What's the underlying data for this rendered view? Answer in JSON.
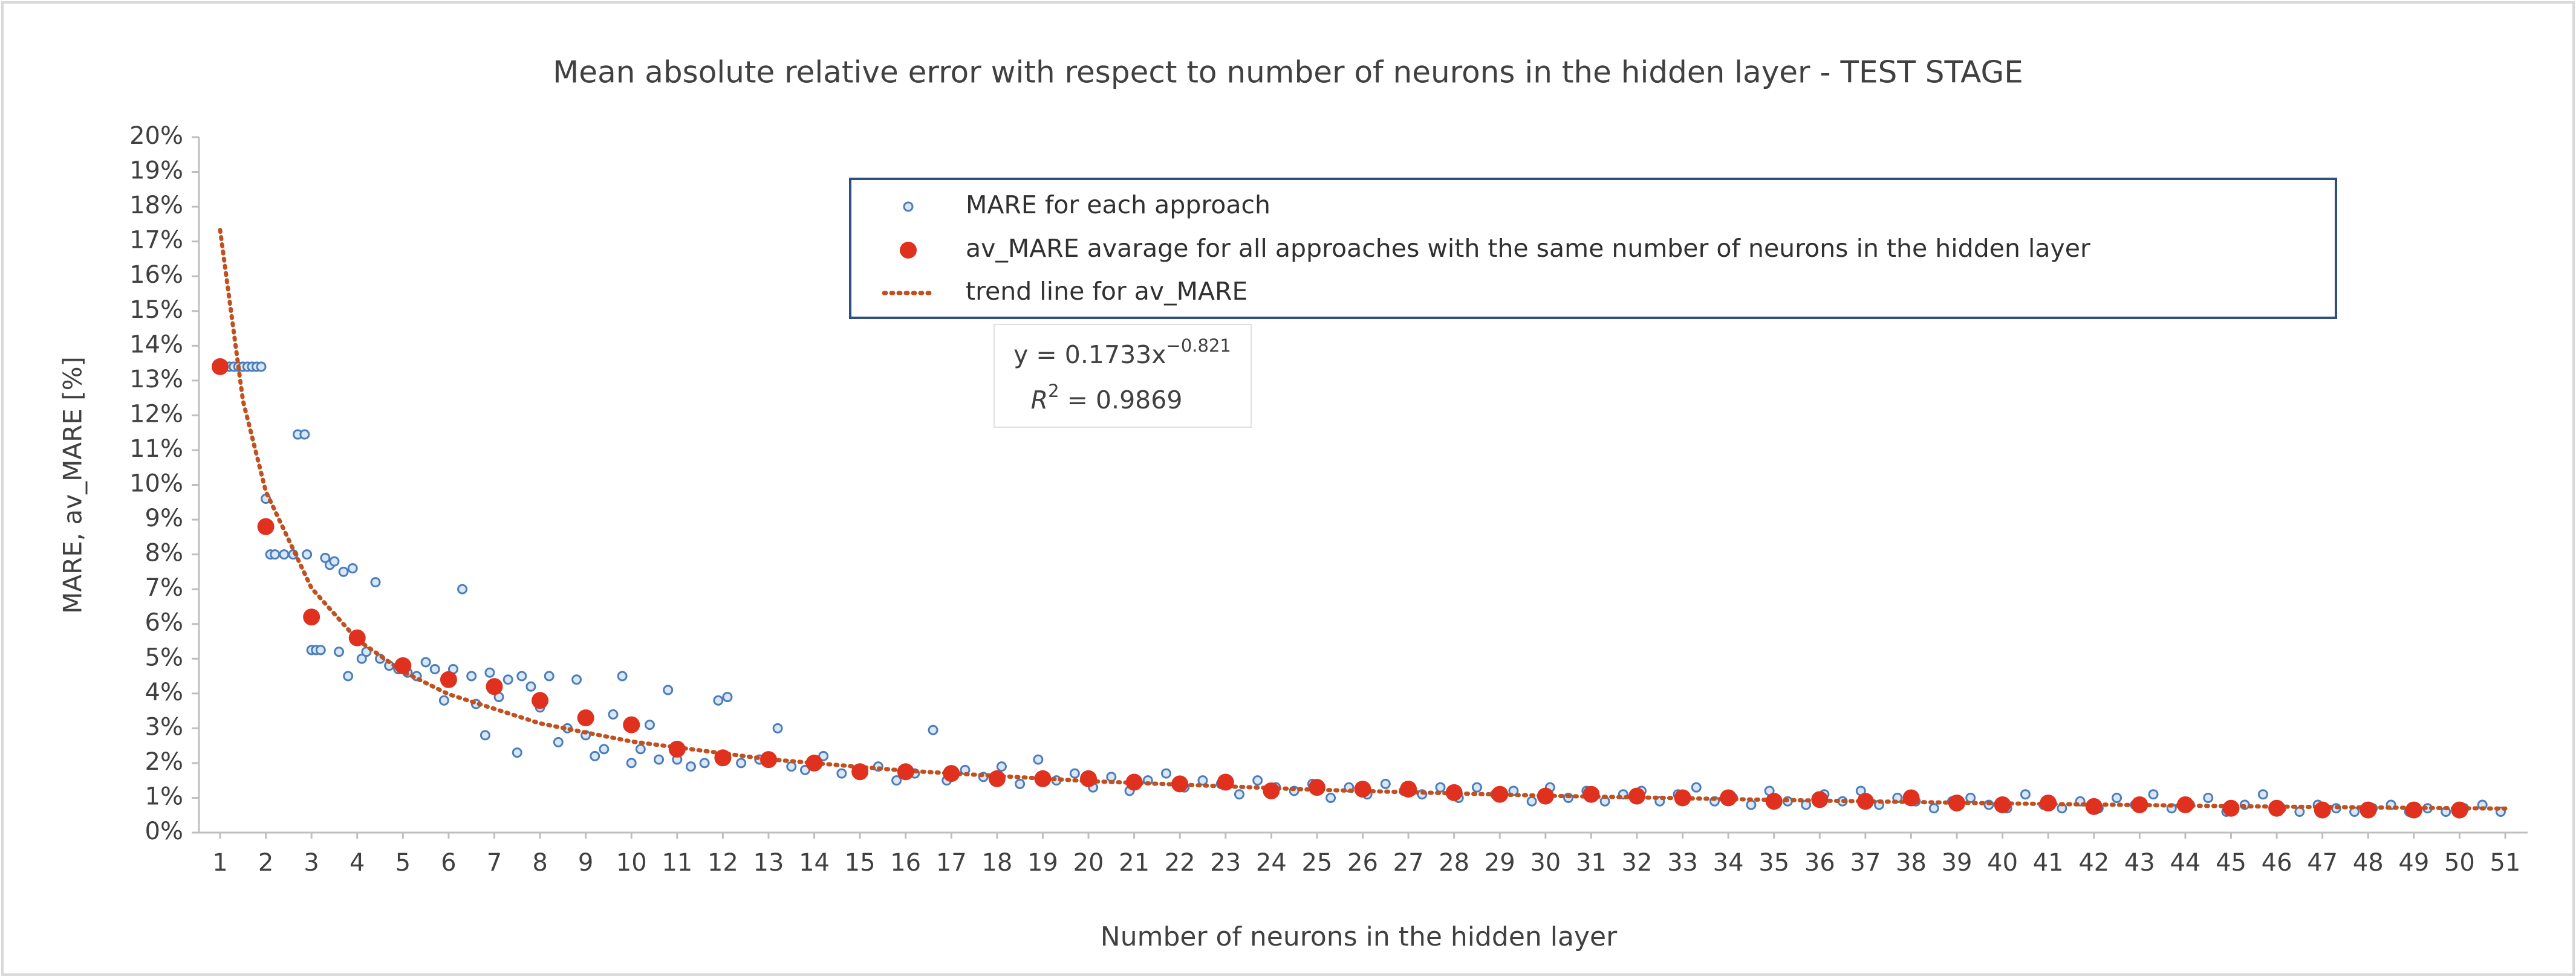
{
  "chart_data": {
    "type": "scatter",
    "title": "Mean absolute relative error with respect to number of neurons in the hidden layer - TEST STAGE",
    "x_label": "Number of neurons  in the hidden layer",
    "y_label": "MARE, av_MARE [%]",
    "xlim": [
      1,
      51
    ],
    "xticks": [
      1,
      2,
      3,
      4,
      5,
      6,
      7,
      8,
      9,
      10,
      11,
      12,
      13,
      14,
      15,
      16,
      17,
      18,
      19,
      20,
      21,
      22,
      23,
      24,
      25,
      26,
      27,
      28,
      29,
      30,
      31,
      32,
      33,
      34,
      35,
      36,
      37,
      38,
      39,
      40,
      41,
      42,
      43,
      44,
      45,
      46,
      47,
      48,
      49,
      50,
      51
    ],
    "ylim": [
      0,
      20
    ],
    "yticks": [
      {
        "value": 0,
        "label": "0%"
      },
      {
        "value": 1,
        "label": "1%"
      },
      {
        "value": 2,
        "label": "2%"
      },
      {
        "value": 3,
        "label": "3%"
      },
      {
        "value": 4,
        "label": "4%"
      },
      {
        "value": 5,
        "label": "5%"
      },
      {
        "value": 6,
        "label": "6%"
      },
      {
        "value": 7,
        "label": "7%"
      },
      {
        "value": 8,
        "label": "8%"
      },
      {
        "value": 9,
        "label": "9%"
      },
      {
        "value": 10,
        "label": "10%"
      },
      {
        "value": 11,
        "label": "11%"
      },
      {
        "value": 12,
        "label": "12%"
      },
      {
        "value": 13,
        "label": "13%"
      },
      {
        "value": 14,
        "label": "14%"
      },
      {
        "value": 15,
        "label": "15%"
      },
      {
        "value": 16,
        "label": "16%"
      },
      {
        "value": 17,
        "label": "17%"
      },
      {
        "value": 18,
        "label": "18%"
      },
      {
        "value": 19,
        "label": "19%"
      },
      {
        "value": 20,
        "label": "20%"
      }
    ],
    "grid": false,
    "legend": "top",
    "series": [
      {
        "name": "MARE for each approach",
        "color": "#4a7ebb",
        "marker": "open-circle",
        "x": [
          1.1,
          1.2,
          1.3,
          1.4,
          1.5,
          1.6,
          1.7,
          1.8,
          1.9,
          2.0,
          2.1,
          2.2,
          2.4,
          2.6,
          2.7,
          2.85,
          2.9,
          3.0,
          3.1,
          3.2,
          3.3,
          3.4,
          3.5,
          3.6,
          3.7,
          3.8,
          3.9,
          4.1,
          4.2,
          4.4,
          4.5,
          4.7,
          4.9,
          5.1,
          5.3,
          5.5,
          5.7,
          5.9,
          6.1,
          6.3,
          6.5,
          6.6,
          6.8,
          6.9,
          7.1,
          7.3,
          7.5,
          7.6,
          7.8,
          8.0,
          8.2,
          8.4,
          8.6,
          8.8,
          9.0,
          9.2,
          9.4,
          9.6,
          9.8,
          10.0,
          10.2,
          10.4,
          10.6,
          10.8,
          11.0,
          11.3,
          11.6,
          11.9,
          12.1,
          12.4,
          12.8,
          13.2,
          13.5,
          13.8,
          14.2,
          14.6,
          15.0,
          15.4,
          15.8,
          16.2,
          16.6,
          16.9,
          17.3,
          17.7,
          18.1,
          18.5,
          18.9,
          19.3,
          19.7,
          20.1,
          20.5,
          20.9,
          21.3,
          21.7,
          22.1,
          22.5,
          22.9,
          23.3,
          23.7,
          24.1,
          24.5,
          24.9,
          25.3,
          25.7,
          26.1,
          26.5,
          26.9,
          27.3,
          27.7,
          28.1,
          28.5,
          28.9,
          29.3,
          29.7,
          30.1,
          30.5,
          30.9,
          31.3,
          31.7,
          32.1,
          32.5,
          32.9,
          33.3,
          33.7,
          34.1,
          34.5,
          34.9,
          35.3,
          35.7,
          36.1,
          36.5,
          36.9,
          37.3,
          37.7,
          38.1,
          38.5,
          38.9,
          39.3,
          39.7,
          40.1,
          40.5,
          40.9,
          41.3,
          41.7,
          42.1,
          42.5,
          42.9,
          43.3,
          43.7,
          44.1,
          44.5,
          44.9,
          45.3,
          45.7,
          46.1,
          46.5,
          46.9,
          47.3,
          47.7,
          48.1,
          48.5,
          48.9,
          49.3,
          49.7,
          50.1,
          50.5,
          50.9
        ],
        "values": [
          13.4,
          13.4,
          13.4,
          13.4,
          13.4,
          13.4,
          13.4,
          13.4,
          13.4,
          9.6,
          8.0,
          8.0,
          8.0,
          8.0,
          11.45,
          11.45,
          8.0,
          5.25,
          5.25,
          5.25,
          7.9,
          7.7,
          7.8,
          5.2,
          7.5,
          4.5,
          7.6,
          5.0,
          5.2,
          7.2,
          5.0,
          4.8,
          4.7,
          4.6,
          4.5,
          4.9,
          4.7,
          3.8,
          4.7,
          7.0,
          4.5,
          3.7,
          2.8,
          4.6,
          3.9,
          4.4,
          2.3,
          4.5,
          4.2,
          3.6,
          4.5,
          2.6,
          3.0,
          4.4,
          2.8,
          2.2,
          2.4,
          3.4,
          4.5,
          2.0,
          2.4,
          3.1,
          2.1,
          4.1,
          2.1,
          1.9,
          2.0,
          3.8,
          3.9,
          2.0,
          2.1,
          3.0,
          1.9,
          1.8,
          2.2,
          1.7,
          1.7,
          1.9,
          1.5,
          1.7,
          2.95,
          1.5,
          1.8,
          1.6,
          1.9,
          1.4,
          2.1,
          1.5,
          1.7,
          1.3,
          1.6,
          1.2,
          1.5,
          1.7,
          1.3,
          1.5,
          1.4,
          1.1,
          1.5,
          1.3,
          1.2,
          1.4,
          1.0,
          1.3,
          1.1,
          1.4,
          1.2,
          1.1,
          1.3,
          1.0,
          1.3,
          1.1,
          1.2,
          0.9,
          1.3,
          1.0,
          1.2,
          0.9,
          1.1,
          1.2,
          0.9,
          1.1,
          1.3,
          0.9,
          1.0,
          0.8,
          1.2,
          0.9,
          0.8,
          1.1,
          0.9,
          1.2,
          0.8,
          1.0,
          0.9,
          0.7,
          0.9,
          1.0,
          0.8,
          0.7,
          1.1,
          0.8,
          0.7,
          0.9,
          0.7,
          1.0,
          0.8,
          1.1,
          0.7,
          0.8,
          1.0,
          0.6,
          0.8,
          1.1,
          0.7,
          0.6,
          0.8,
          0.7,
          0.6,
          0.7,
          0.8,
          0.6,
          0.7,
          0.6,
          0.7,
          0.8,
          0.6
        ]
      },
      {
        "name": "av_MARE avarage for all approaches with the same number of neurons in the hidden layer",
        "color": "#e0301e",
        "marker": "filled-circle",
        "x": [
          1,
          2,
          3,
          4,
          5,
          6,
          7,
          8,
          9,
          10,
          11,
          12,
          13,
          14,
          15,
          16,
          17,
          18,
          19,
          20,
          21,
          22,
          23,
          24,
          25,
          26,
          27,
          28,
          29,
          30,
          31,
          32,
          33,
          34,
          35,
          36,
          37,
          38,
          39,
          40,
          41,
          42,
          43,
          44,
          45,
          46,
          47,
          48,
          49,
          50
        ],
        "values": [
          13.4,
          8.8,
          6.2,
          5.6,
          4.8,
          4.4,
          4.2,
          3.8,
          3.3,
          3.1,
          2.4,
          2.15,
          2.1,
          2.0,
          1.75,
          1.75,
          1.7,
          1.55,
          1.55,
          1.55,
          1.45,
          1.4,
          1.45,
          1.2,
          1.3,
          1.25,
          1.25,
          1.15,
          1.1,
          1.05,
          1.1,
          1.05,
          1.0,
          1.0,
          0.9,
          0.95,
          0.9,
          1.0,
          0.85,
          0.8,
          0.85,
          0.75,
          0.8,
          0.8,
          0.7,
          0.7,
          0.65,
          0.65,
          0.65,
          0.65
        ]
      },
      {
        "name": "trend line for av_MARE",
        "color": "#c0501f",
        "marker": "dotted-line",
        "x": [
          1,
          1.5,
          2,
          3,
          4,
          5,
          6,
          8,
          10,
          13,
          16,
          20,
          25,
          30,
          35,
          40,
          45,
          50,
          51
        ],
        "values": [
          17.33,
          12.42,
          9.81,
          7.03,
          5.55,
          4.63,
          3.98,
          3.14,
          2.62,
          2.11,
          1.78,
          1.48,
          1.23,
          1.06,
          0.94,
          0.84,
          0.76,
          0.7,
          0.69
        ]
      }
    ],
    "annotations": {
      "equation": "y = 0.1733x",
      "equation_exponent": "−0.821",
      "r2_symbol": "R",
      "r2_exponent": "2",
      "r2_value": " = 0.9869"
    }
  }
}
